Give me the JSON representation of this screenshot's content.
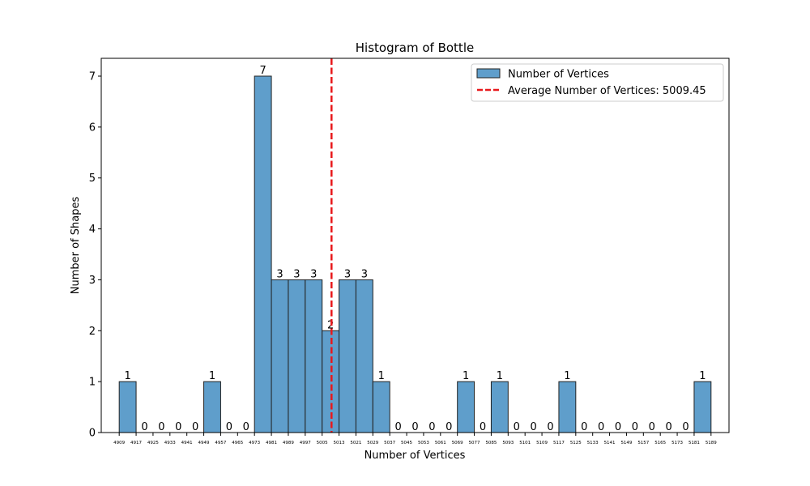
{
  "chart_data": {
    "type": "bar",
    "title": "Histogram of Bottle",
    "xlabel": "Number of Vertices",
    "ylabel": "Number of Shapes",
    "ylim": [
      0,
      7.35
    ],
    "yticks": [
      0,
      1,
      2,
      3,
      4,
      5,
      6,
      7
    ],
    "bin_edges": [
      4909,
      4917,
      4925,
      4933,
      4941,
      4949,
      4957,
      4965,
      4973,
      4981,
      4989,
      4997,
      5005,
      5013,
      5021,
      5029,
      5037,
      5045,
      5053,
      5061,
      5069,
      5077,
      5085,
      5093,
      5101,
      5109,
      5117,
      5125,
      5133,
      5141,
      5149,
      5157,
      5165,
      5173,
      5181,
      5189
    ],
    "bin_width": 8,
    "values": [
      1,
      0,
      0,
      0,
      0,
      1,
      0,
      0,
      7,
      3,
      3,
      3,
      2,
      3,
      3,
      1,
      0,
      0,
      0,
      0,
      1,
      0,
      1,
      0,
      0,
      0,
      1,
      0,
      0,
      0,
      0,
      0,
      0,
      0,
      1
    ],
    "series": [
      {
        "name": "Number of Vertices",
        "color": "#5f9ecb",
        "edgecolor": "#222222"
      }
    ],
    "average": {
      "label": "Average Number of Vertices: 5009.45",
      "value": 5009.45,
      "color": "#e8191c"
    },
    "xlim": [
      4900.5,
      5197.5
    ],
    "legend": "top-right",
    "grid": false
  }
}
